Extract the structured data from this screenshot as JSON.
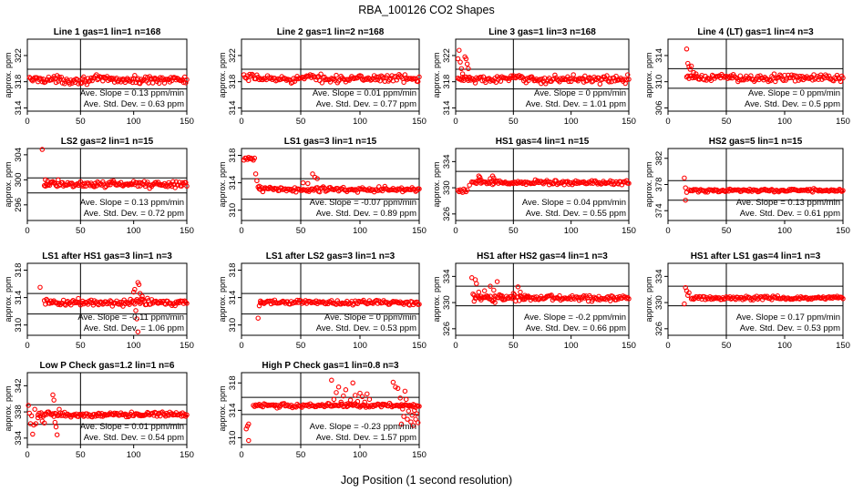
{
  "figure": {
    "title": "RBA_100126  CO2 Shapes",
    "xlabel": "Jog Position (1 second resolution)",
    "point_color": "#ff0000"
  },
  "chart_data": [
    {
      "type": "scatter",
      "title": "Line 1 gas=1 lin=1 n=168",
      "ylabel": "approx. ppm",
      "xlim": [
        0,
        150
      ],
      "xticks": [
        0,
        50,
        100,
        150
      ],
      "ylim": [
        313.5,
        324.5
      ],
      "yticks": [
        314,
        318,
        322
      ],
      "vline": 50,
      "ref_lines": [
        316.9,
        319.9
      ],
      "x_start": 2,
      "x_end": 150,
      "baseline": 318.3,
      "noise": 0.6,
      "features": [],
      "slope_text": "Ave. Slope = 0.13 ppm/min",
      "sd_text": "Ave. Std. Dev. = 0.63 ppm"
    },
    {
      "type": "scatter",
      "title": "Line 2 gas=1 lin=2 n=168",
      "ylabel": "approx. ppm",
      "xlim": [
        0,
        150
      ],
      "xticks": [
        0,
        50,
        100,
        150
      ],
      "ylim": [
        313.5,
        324.5
      ],
      "yticks": [
        314,
        318,
        322
      ],
      "vline": 50,
      "ref_lines": [
        316.9,
        319.9
      ],
      "x_start": 2,
      "x_end": 150,
      "baseline": 318.5,
      "noise": 0.6,
      "features": [],
      "slope_text": "Ave. Slope = 0.01 ppm/min",
      "sd_text": "Ave. Std. Dev. = 0.77 ppm"
    },
    {
      "type": "scatter",
      "title": "Line 3 gas=1 lin=3 n=168",
      "ylabel": "approx. ppm",
      "xlim": [
        0,
        150
      ],
      "xticks": [
        0,
        50,
        100,
        150
      ],
      "ylim": [
        313.5,
        324.5
      ],
      "yticks": [
        314,
        318,
        322
      ],
      "vline": 50,
      "ref_lines": [
        316.9,
        319.9
      ],
      "x_start": 2,
      "x_end": 150,
      "baseline": 318.4,
      "noise": 0.6,
      "features": [
        [
          2,
          321.5
        ],
        [
          3,
          322.8
        ],
        [
          4,
          321.0
        ],
        [
          5,
          320.0
        ],
        [
          6,
          319.2
        ],
        [
          7,
          318.5
        ],
        [
          8,
          321.8
        ],
        [
          9,
          321.5
        ],
        [
          10,
          320.7
        ],
        [
          11,
          320.0
        ],
        [
          12,
          318.7
        ]
      ],
      "slope_text": "Ave. Slope = 0 ppm/min",
      "sd_text": "Ave. Std. Dev. = 1.01 ppm"
    },
    {
      "type": "scatter",
      "title": "Line 4 (LT) gas=1 lin=4 n=3",
      "ylabel": "approx. ppm",
      "xlim": [
        0,
        150
      ],
      "xticks": [
        0,
        50,
        100,
        150
      ],
      "ylim": [
        305.5,
        316.5
      ],
      "yticks": [
        306,
        310,
        314
      ],
      "vline": 50,
      "ref_lines": [
        309.0,
        312.0
      ],
      "x_start": 16,
      "x_end": 150,
      "baseline": 310.6,
      "noise": 0.6,
      "features": [
        [
          16,
          315.0
        ],
        [
          17,
          312.8
        ],
        [
          18,
          312.3
        ],
        [
          19,
          311.9
        ],
        [
          20,
          312.4
        ],
        [
          22,
          311.4
        ],
        [
          24,
          311.2
        ]
      ],
      "slope_text": "Ave. Slope = 0 ppm/min",
      "sd_text": "Ave. Std. Dev. = 0.5 ppm"
    },
    {
      "type": "scatter",
      "title": "LS2 gas=2 lin=1 n=15",
      "ylabel": "approx. ppm",
      "xlim": [
        0,
        150
      ],
      "xticks": [
        0,
        50,
        100,
        150
      ],
      "ylim": [
        293.5,
        305.0
      ],
      "yticks": [
        296,
        300,
        304
      ],
      "vline": 50,
      "ref_lines": [
        297.9,
        300.3
      ],
      "x_start": 16,
      "x_end": 150,
      "baseline": 299.3,
      "noise": 0.55,
      "features": [
        [
          14,
          305.2
        ],
        [
          17,
          300.0
        ],
        [
          19,
          299.8
        ],
        [
          63,
          298.9
        ]
      ],
      "slope_text": "Ave. Slope = 0.13 ppm/min",
      "sd_text": "Ave. Std. Dev. = 0.72 ppm"
    },
    {
      "type": "scatter",
      "title": "LS1 gas=3 lin=1 n=15",
      "ylabel": "approx. ppm",
      "xlim": [
        0,
        150
      ],
      "xticks": [
        0,
        50,
        100,
        150
      ],
      "ylim": [
        308.5,
        319.0
      ],
      "yticks": [
        310,
        314,
        318
      ],
      "vline": 50,
      "ref_lines": [
        311.6,
        314.6
      ],
      "x_start": 14,
      "x_end": 150,
      "baseline": 313.0,
      "noise": 0.45,
      "features": [
        [
          2,
          317.3
        ],
        [
          3,
          317.6
        ],
        [
          4,
          317.6
        ],
        [
          5,
          317.4
        ],
        [
          6,
          317.7
        ],
        [
          7,
          317.5
        ],
        [
          8,
          317.6
        ],
        [
          9,
          317.5
        ],
        [
          10,
          317.3
        ],
        [
          11,
          317.6
        ],
        [
          12,
          315.3
        ],
        [
          13,
          314.3
        ],
        [
          15,
          313.5
        ],
        [
          52,
          314.0
        ],
        [
          56,
          313.9
        ],
        [
          60,
          315.3
        ],
        [
          62,
          314.8
        ],
        [
          64,
          314.6
        ]
      ],
      "slope_text": "Ave. Slope = -0.07 ppm/min",
      "sd_text": "Ave. Std. Dev. = 0.89 ppm"
    },
    {
      "type": "scatter",
      "title": "HS1 gas=4 lin=1 n=15",
      "ylabel": "approx. ppm",
      "xlim": [
        0,
        150
      ],
      "xticks": [
        0,
        50,
        100,
        150
      ],
      "ylim": [
        325.0,
        336.0
      ],
      "yticks": [
        326,
        330,
        334
      ],
      "vline": 50,
      "ref_lines": [
        329.5,
        332.5
      ],
      "x_start": 14,
      "x_end": 150,
      "baseline": 330.8,
      "noise": 0.35,
      "features": [
        [
          2,
          329.6
        ],
        [
          3,
          329.4
        ],
        [
          4,
          329.7
        ],
        [
          5,
          329.5
        ],
        [
          6,
          329.3
        ],
        [
          7,
          329.8
        ],
        [
          8,
          329.6
        ],
        [
          9,
          329.4
        ],
        [
          10,
          329.7
        ],
        [
          12,
          330.4
        ],
        [
          20,
          331.8
        ],
        [
          21,
          331.6
        ],
        [
          22,
          331.2
        ],
        [
          30,
          331.4
        ],
        [
          32,
          331.8
        ],
        [
          33,
          331.5
        ],
        [
          34,
          331.1
        ]
      ],
      "slope_text": "Ave. Slope = 0.04 ppm/min",
      "sd_text": "Ave. Std. Dev. = 0.55 ppm"
    },
    {
      "type": "scatter",
      "title": "HS2 gas=5 lin=1 n=15",
      "ylabel": "approx. ppm",
      "xlim": [
        0,
        150
      ],
      "xticks": [
        0,
        50,
        100,
        150
      ],
      "ylim": [
        372.5,
        383.5
      ],
      "yticks": [
        374,
        378,
        382
      ],
      "vline": 50,
      "ref_lines": [
        375.6,
        378.6
      ],
      "x_start": 18,
      "x_end": 150,
      "baseline": 377.1,
      "noise": 0.25,
      "features": [
        [
          14,
          379.0
        ],
        [
          15,
          377.5
        ],
        [
          16,
          376.8
        ],
        [
          15,
          375.6
        ]
      ],
      "slope_text": "Ave. Slope = 0.13 ppm/min",
      "sd_text": "Ave. Std. Dev. = 0.61 ppm"
    },
    {
      "type": "scatter",
      "title": "LS1 after HS1 gas=3 lin=1 n=3",
      "ylabel": "approx. ppm",
      "xlim": [
        0,
        150
      ],
      "xticks": [
        0,
        50,
        100,
        150
      ],
      "ylim": [
        308.5,
        319.0
      ],
      "yticks": [
        310,
        314,
        318
      ],
      "vline": 50,
      "ref_lines": [
        311.6,
        314.6
      ],
      "x_start": 16,
      "x_end": 150,
      "baseline": 313.3,
      "noise": 0.5,
      "features": [
        [
          12,
          315.5
        ],
        [
          100,
          314.8
        ],
        [
          101,
          315.2
        ],
        [
          102,
          312.1
        ],
        [
          103,
          310.9
        ],
        [
          104,
          316.2
        ],
        [
          105,
          315.9
        ],
        [
          106,
          314.6
        ],
        [
          107,
          313.8
        ],
        [
          108,
          314.2
        ],
        [
          104,
          309.0
        ]
      ],
      "slope_text": "Ave. Slope = -0.11 ppm/min",
      "sd_text": "Ave. Std. Dev. = 1.06 ppm"
    },
    {
      "type": "scatter",
      "title": "LS1 after LS2 gas=3 lin=1 n=3",
      "ylabel": "approx. ppm",
      "xlim": [
        0,
        150
      ],
      "xticks": [
        0,
        50,
        100,
        150
      ],
      "ylim": [
        308.5,
        319.0
      ],
      "yticks": [
        310,
        314,
        318
      ],
      "vline": 50,
      "ref_lines": [
        311.6,
        314.6
      ],
      "x_start": 16,
      "x_end": 150,
      "baseline": 313.3,
      "noise": 0.4,
      "features": [
        [
          14,
          311.0
        ],
        [
          15,
          312.8
        ],
        [
          16,
          313.5
        ]
      ],
      "slope_text": "Ave. Slope = 0 ppm/min",
      "sd_text": "Ave. Std. Dev. = 0.53 ppm"
    },
    {
      "type": "scatter",
      "title": "HS1 after HS2 gas=4 lin=1 n=3",
      "ylabel": "approx. ppm",
      "xlim": [
        0,
        150
      ],
      "xticks": [
        0,
        50,
        100,
        150
      ],
      "ylim": [
        325.0,
        336.0
      ],
      "yticks": [
        326,
        330,
        334
      ],
      "vline": 50,
      "ref_lines": [
        329.5,
        332.5
      ],
      "x_start": 16,
      "x_end": 150,
      "baseline": 330.7,
      "noise": 0.45,
      "features": [
        [
          14,
          333.8
        ],
        [
          15,
          331.3
        ],
        [
          16,
          330.2
        ],
        [
          17,
          333.5
        ],
        [
          18,
          332.9
        ],
        [
          20,
          331.6
        ],
        [
          22,
          330.4
        ],
        [
          25,
          331.8
        ],
        [
          28,
          330.9
        ],
        [
          30,
          332.5
        ],
        [
          33,
          331.9
        ],
        [
          34,
          330.0
        ],
        [
          36,
          333.2
        ],
        [
          38,
          331.2
        ],
        [
          40,
          330.6
        ],
        [
          50,
          331.4
        ],
        [
          54,
          332.4
        ],
        [
          56,
          331.6
        ],
        [
          58,
          330.5
        ],
        [
          60,
          331.1
        ],
        [
          62,
          330.8
        ]
      ],
      "slope_text": "Ave. Slope = -0.2 ppm/min",
      "sd_text": "Ave. Std. Dev. = 0.66 ppm"
    },
    {
      "type": "scatter",
      "title": "HS1 after LS1 gas=4 lin=1 n=3",
      "ylabel": "approx. ppm",
      "xlim": [
        0,
        150
      ],
      "xticks": [
        0,
        50,
        100,
        150
      ],
      "ylim": [
        325.0,
        336.0
      ],
      "yticks": [
        326,
        330,
        334
      ],
      "vline": 50,
      "ref_lines": [
        329.5,
        332.5
      ],
      "x_start": 20,
      "x_end": 150,
      "baseline": 330.7,
      "noise": 0.3,
      "features": [
        [
          14,
          329.8
        ],
        [
          15,
          332.3
        ],
        [
          16,
          331.8
        ],
        [
          17,
          331.1
        ],
        [
          18,
          331.5
        ]
      ],
      "slope_text": "Ave. Slope = 0.17 ppm/min",
      "sd_text": "Ave. Std. Dev. = 0.53 ppm"
    },
    {
      "type": "scatter",
      "title": "Low P Check gas=1.2 lin=1 n=6",
      "ylabel": "approx. ppm",
      "xlim": [
        0,
        150
      ],
      "xticks": [
        0,
        50,
        100,
        150
      ],
      "ylim": [
        333.0,
        344.0
      ],
      "yticks": [
        334,
        338,
        342
      ],
      "vline": 50,
      "ref_lines": [
        336.1,
        339.1
      ],
      "x_start": 10,
      "x_end": 150,
      "baseline": 337.6,
      "noise": 0.35,
      "features": [
        [
          1,
          339.0
        ],
        [
          2,
          337.8
        ],
        [
          3,
          336.2
        ],
        [
          4,
          337.4
        ],
        [
          5,
          334.6
        ],
        [
          6,
          336.0
        ],
        [
          7,
          338.4
        ],
        [
          8,
          336.2
        ],
        [
          10,
          337.1
        ],
        [
          14,
          336.6
        ],
        [
          16,
          336.3
        ],
        [
          24,
          340.6
        ],
        [
          25,
          339.8
        ],
        [
          26,
          336.4
        ],
        [
          27,
          335.7
        ],
        [
          28,
          334.5
        ],
        [
          30,
          338.4
        ]
      ],
      "slope_text": "Ave. Slope = 0.01 ppm/min",
      "sd_text": "Ave. Std. Dev. = 0.54 ppm"
    },
    {
      "type": "scatter",
      "title": "High P Check gas=1 lin=0.8 n=3",
      "ylabel": "approx. ppm",
      "xlim": [
        0,
        150
      ],
      "xticks": [
        0,
        50,
        100,
        150
      ],
      "ylim": [
        309.0,
        319.5
      ],
      "yticks": [
        310,
        314,
        318
      ],
      "vline": 50,
      "ref_lines": [
        313.4,
        315.9
      ],
      "x_start": 10,
      "x_end": 150,
      "baseline": 314.7,
      "noise": 0.3,
      "features": [
        [
          4,
          311.3
        ],
        [
          5,
          311.7
        ],
        [
          6,
          309.6
        ],
        [
          6,
          312.0
        ],
        [
          76,
          318.4
        ],
        [
          78,
          315.6
        ],
        [
          80,
          316.6
        ],
        [
          82,
          317.4
        ],
        [
          84,
          315.2
        ],
        [
          86,
          316.1
        ],
        [
          88,
          317.0
        ],
        [
          90,
          315.0
        ],
        [
          92,
          315.5
        ],
        [
          94,
          318.0
        ],
        [
          96,
          316.2
        ],
        [
          98,
          315.3
        ],
        [
          100,
          316.5
        ],
        [
          102,
          316.0
        ],
        [
          104,
          315.2
        ],
        [
          106,
          316.4
        ],
        [
          108,
          315.6
        ],
        [
          120,
          314.9
        ],
        [
          128,
          318.1
        ],
        [
          130,
          317.4
        ],
        [
          132,
          317.2
        ],
        [
          134,
          315.8
        ],
        [
          135,
          312.0
        ],
        [
          136,
          314.2
        ],
        [
          137,
          313.1
        ],
        [
          138,
          316.8
        ],
        [
          139,
          315.6
        ],
        [
          140,
          312.7
        ],
        [
          141,
          313.9
        ],
        [
          142,
          314.6
        ],
        [
          143,
          312.3
        ],
        [
          144,
          313.3
        ],
        [
          145,
          311.8
        ],
        [
          146,
          314.0
        ],
        [
          147,
          312.7
        ],
        [
          148,
          313.5
        ],
        [
          149,
          312.2
        ]
      ],
      "slope_text": "Ave. Slope = -0.23 ppm/min",
      "sd_text": "Ave. Std. Dev. = 1.57 ppm"
    }
  ]
}
